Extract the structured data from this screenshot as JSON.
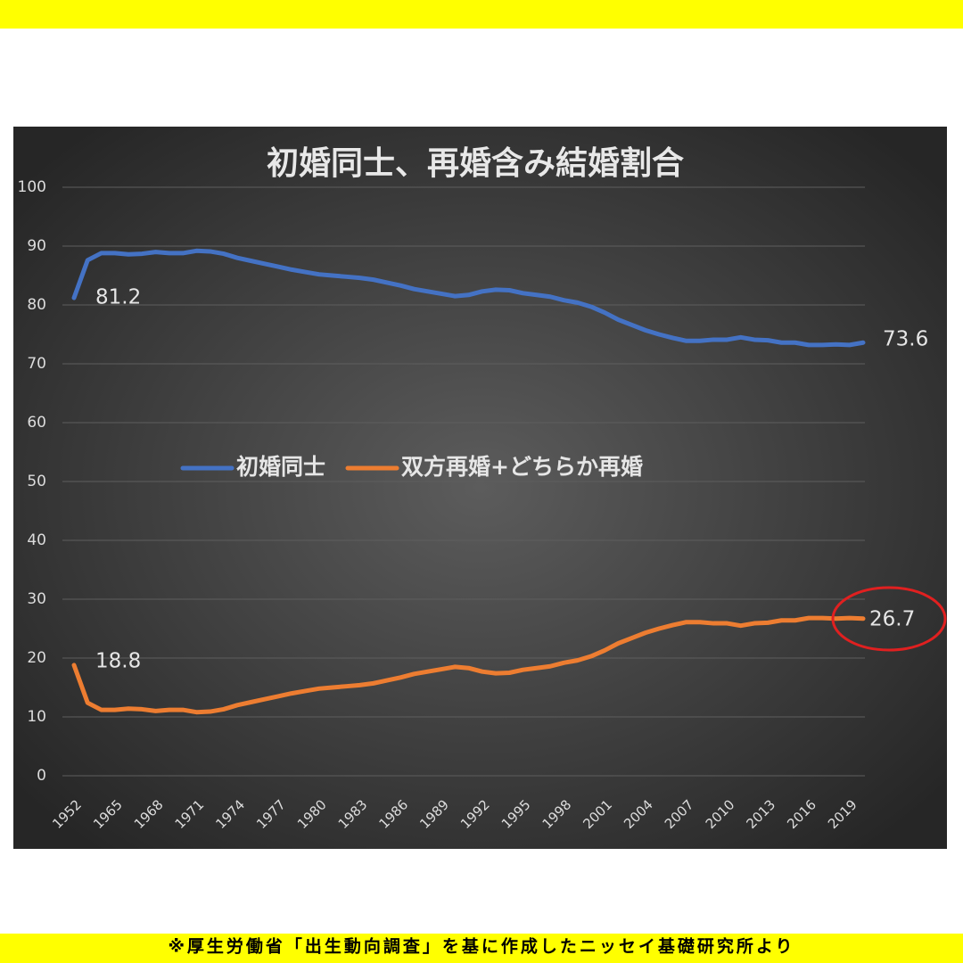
{
  "chart_data": {
    "type": "line",
    "title": "初婚同士、再婚含み結婚割合",
    "categories": [
      "1952",
      null,
      null,
      "1965",
      null,
      null,
      "1968",
      null,
      null,
      "1971",
      null,
      null,
      "1974",
      null,
      null,
      "1977",
      null,
      null,
      "1980",
      null,
      null,
      "1983",
      null,
      null,
      "1986",
      null,
      null,
      "1989",
      null,
      null,
      "1992",
      null,
      null,
      "1995",
      null,
      null,
      "1998",
      null,
      null,
      "2001",
      null,
      null,
      "2004",
      null,
      null,
      "2007",
      null,
      null,
      "2010",
      null,
      null,
      "2013",
      null,
      null,
      "2016",
      null,
      null,
      "2019",
      null
    ],
    "series": [
      {
        "name": "初婚同士",
        "color": "#4472c4",
        "values": [
          81.2,
          87.6,
          88.8,
          88.8,
          88.6,
          88.7,
          89.0,
          88.8,
          88.8,
          89.2,
          89.1,
          88.7,
          88.0,
          87.5,
          87.0,
          86.5,
          86.0,
          85.6,
          85.2,
          85.0,
          84.8,
          84.6,
          84.3,
          83.8,
          83.3,
          82.7,
          82.3,
          81.9,
          81.5,
          81.7,
          82.3,
          82.6,
          82.5,
          82.0,
          81.7,
          81.4,
          80.8,
          80.4,
          79.7,
          78.7,
          77.5,
          76.6,
          75.7,
          75.0,
          74.4,
          73.9,
          73.9,
          74.1,
          74.1,
          74.5,
          74.1,
          74.0,
          73.6,
          73.6,
          73.2,
          73.2,
          73.3,
          73.2,
          73.6
        ]
      },
      {
        "name": "双方再婚+どちらか再婚",
        "color": "#ed7d31",
        "values": [
          18.8,
          12.4,
          11.2,
          11.2,
          11.4,
          11.3,
          11.0,
          11.2,
          11.2,
          10.8,
          10.9,
          11.3,
          12.0,
          12.5,
          13.0,
          13.5,
          14.0,
          14.4,
          14.8,
          15.0,
          15.2,
          15.4,
          15.7,
          16.2,
          16.7,
          17.3,
          17.7,
          18.1,
          18.5,
          18.3,
          17.7,
          17.4,
          17.5,
          18.0,
          18.3,
          18.6,
          19.2,
          19.6,
          20.3,
          21.3,
          22.5,
          23.4,
          24.3,
          25.0,
          25.6,
          26.1,
          26.1,
          25.9,
          25.9,
          25.5,
          25.9,
          26.0,
          26.4,
          26.4,
          26.8,
          26.8,
          26.7,
          26.8,
          26.7
        ]
      }
    ],
    "ylim": [
      0,
      100
    ],
    "yticks": [
      0,
      10,
      20,
      30,
      40,
      50,
      60,
      70,
      80,
      90,
      100
    ],
    "grid": true,
    "legend": "center"
  },
  "footnote": "※厚生労働省「出生動向調査」を基に作成したニッセイ基礎研究所より"
}
